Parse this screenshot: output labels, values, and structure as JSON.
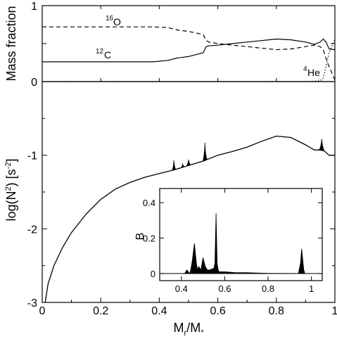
{
  "chart_data": [
    {
      "panel": "top",
      "type": "line",
      "ylabel": "Mass fraction",
      "xlim": [
        0,
        1
      ],
      "ylim": [
        0,
        1
      ],
      "yticks": [
        "0",
        "0.5",
        "1"
      ],
      "series": [
        {
          "name": "16O",
          "name_sup": "16",
          "name_base": "O",
          "style": "dashed",
          "x": [
            0.0,
            0.1,
            0.2,
            0.3,
            0.38,
            0.43,
            0.46,
            0.5,
            0.55,
            0.56,
            0.57,
            0.6,
            0.65,
            0.7,
            0.75,
            0.8,
            0.85,
            0.9,
            0.93,
            0.95,
            0.96,
            0.97,
            0.98,
            1.0
          ],
          "values": [
            0.72,
            0.72,
            0.72,
            0.72,
            0.72,
            0.71,
            0.68,
            0.66,
            0.62,
            0.54,
            0.52,
            0.5,
            0.48,
            0.46,
            0.44,
            0.42,
            0.43,
            0.46,
            0.48,
            0.46,
            0.42,
            0.3,
            0.2,
            0.02
          ]
        },
        {
          "name": "12C",
          "name_sup": "12",
          "name_base": "C",
          "style": "solid",
          "x": [
            0.0,
            0.1,
            0.2,
            0.3,
            0.38,
            0.43,
            0.46,
            0.5,
            0.55,
            0.56,
            0.57,
            0.6,
            0.65,
            0.7,
            0.75,
            0.8,
            0.85,
            0.9,
            0.93,
            0.95,
            0.96,
            0.97,
            0.98,
            1.0
          ],
          "values": [
            0.26,
            0.26,
            0.26,
            0.26,
            0.26,
            0.28,
            0.31,
            0.33,
            0.38,
            0.46,
            0.47,
            0.48,
            0.5,
            0.52,
            0.54,
            0.56,
            0.55,
            0.52,
            0.49,
            0.52,
            0.56,
            0.52,
            0.43,
            0.42
          ]
        },
        {
          "name": "4He",
          "name_sup": "4",
          "name_base": "He",
          "style": "dotted",
          "x": [
            0.0,
            0.2,
            0.4,
            0.6,
            0.8,
            0.9,
            0.95,
            0.96,
            0.97,
            0.98,
            1.0
          ],
          "values": [
            0.0,
            0.0,
            0.0,
            0.0,
            0.0,
            0.0,
            0.01,
            0.05,
            0.2,
            0.38,
            0.56
          ]
        }
      ]
    },
    {
      "panel": "main",
      "type": "line",
      "xlabel": "M",
      "xlabel_sub": "r",
      "xlabel_tail": "/M",
      "xlabel_sub2": "*",
      "ylabel": "log(N",
      "ylabel_sup": "2",
      "ylabel_mid": ") [s",
      "ylabel_sup2": "-2",
      "ylabel_tail": "]",
      "xlim": [
        0,
        1
      ],
      "ylim": [
        -3,
        0
      ],
      "xticks": [
        "0",
        "0.2",
        "0.4",
        "0.6",
        "0.8",
        "1"
      ],
      "yticks": [
        "-3",
        "-2",
        "-1"
      ],
      "series": [
        {
          "name": "",
          "style": "solid",
          "x": [
            0.01,
            0.02,
            0.04,
            0.07,
            0.1,
            0.15,
            0.2,
            0.25,
            0.3,
            0.35,
            0.4,
            0.45,
            0.5,
            0.55,
            0.6,
            0.65,
            0.7,
            0.75,
            0.8,
            0.85,
            0.9,
            0.93,
            0.96,
            0.98,
            0.99,
            1.0
          ],
          "values": [
            -3.0,
            -2.75,
            -2.5,
            -2.25,
            -2.05,
            -1.8,
            -1.6,
            -1.46,
            -1.37,
            -1.3,
            -1.25,
            -1.2,
            -1.14,
            -1.08,
            -1.0,
            -0.95,
            -0.89,
            -0.81,
            -0.74,
            -0.76,
            -0.86,
            -0.93,
            -0.93,
            -1.0,
            -1.0,
            -1.0
          ]
        }
      ],
      "filled_spikes": [
        {
          "x": 0.45,
          "height": 0.13,
          "width": 0.012
        },
        {
          "x": 0.48,
          "height": 0.05,
          "width": 0.01
        },
        {
          "x": 0.5,
          "height": 0.08,
          "width": 0.014
        },
        {
          "x": 0.556,
          "height": 0.24,
          "width": 0.014
        },
        {
          "x": 0.955,
          "height": 0.15,
          "width": 0.018
        }
      ]
    },
    {
      "panel": "inset",
      "type": "area",
      "ylabel": "B",
      "xlim": [
        0.3,
        1.05
      ],
      "ylim": [
        -0.04,
        0.48
      ],
      "xticks": [
        "0.4",
        "0.6",
        "0.8",
        "1"
      ],
      "yticks": [
        "0",
        "0.2",
        "0.4"
      ],
      "x": [
        0.4,
        0.415,
        0.425,
        0.44,
        0.45,
        0.46,
        0.47,
        0.475,
        0.48,
        0.49,
        0.5,
        0.51,
        0.52,
        0.53,
        0.55,
        0.555,
        0.56,
        0.565,
        0.57,
        0.575,
        0.58,
        0.6,
        0.65,
        0.7,
        0.75,
        0.8,
        0.9,
        0.94,
        0.95,
        0.955,
        0.96,
        0.965,
        0.97,
        0.98,
        1.0
      ],
      "values": [
        0.0,
        0.0,
        0.02,
        0.0,
        0.07,
        0.17,
        0.05,
        0.02,
        0.04,
        0.02,
        0.09,
        0.04,
        0.02,
        0.02,
        0.03,
        0.06,
        0.34,
        0.06,
        0.02,
        0.01,
        0.01,
        0.01,
        0.005,
        0.005,
        0.003,
        0.001,
        0.0,
        0.0,
        0.06,
        0.14,
        0.08,
        0.02,
        0.0,
        0.0,
        0.0
      ]
    }
  ]
}
